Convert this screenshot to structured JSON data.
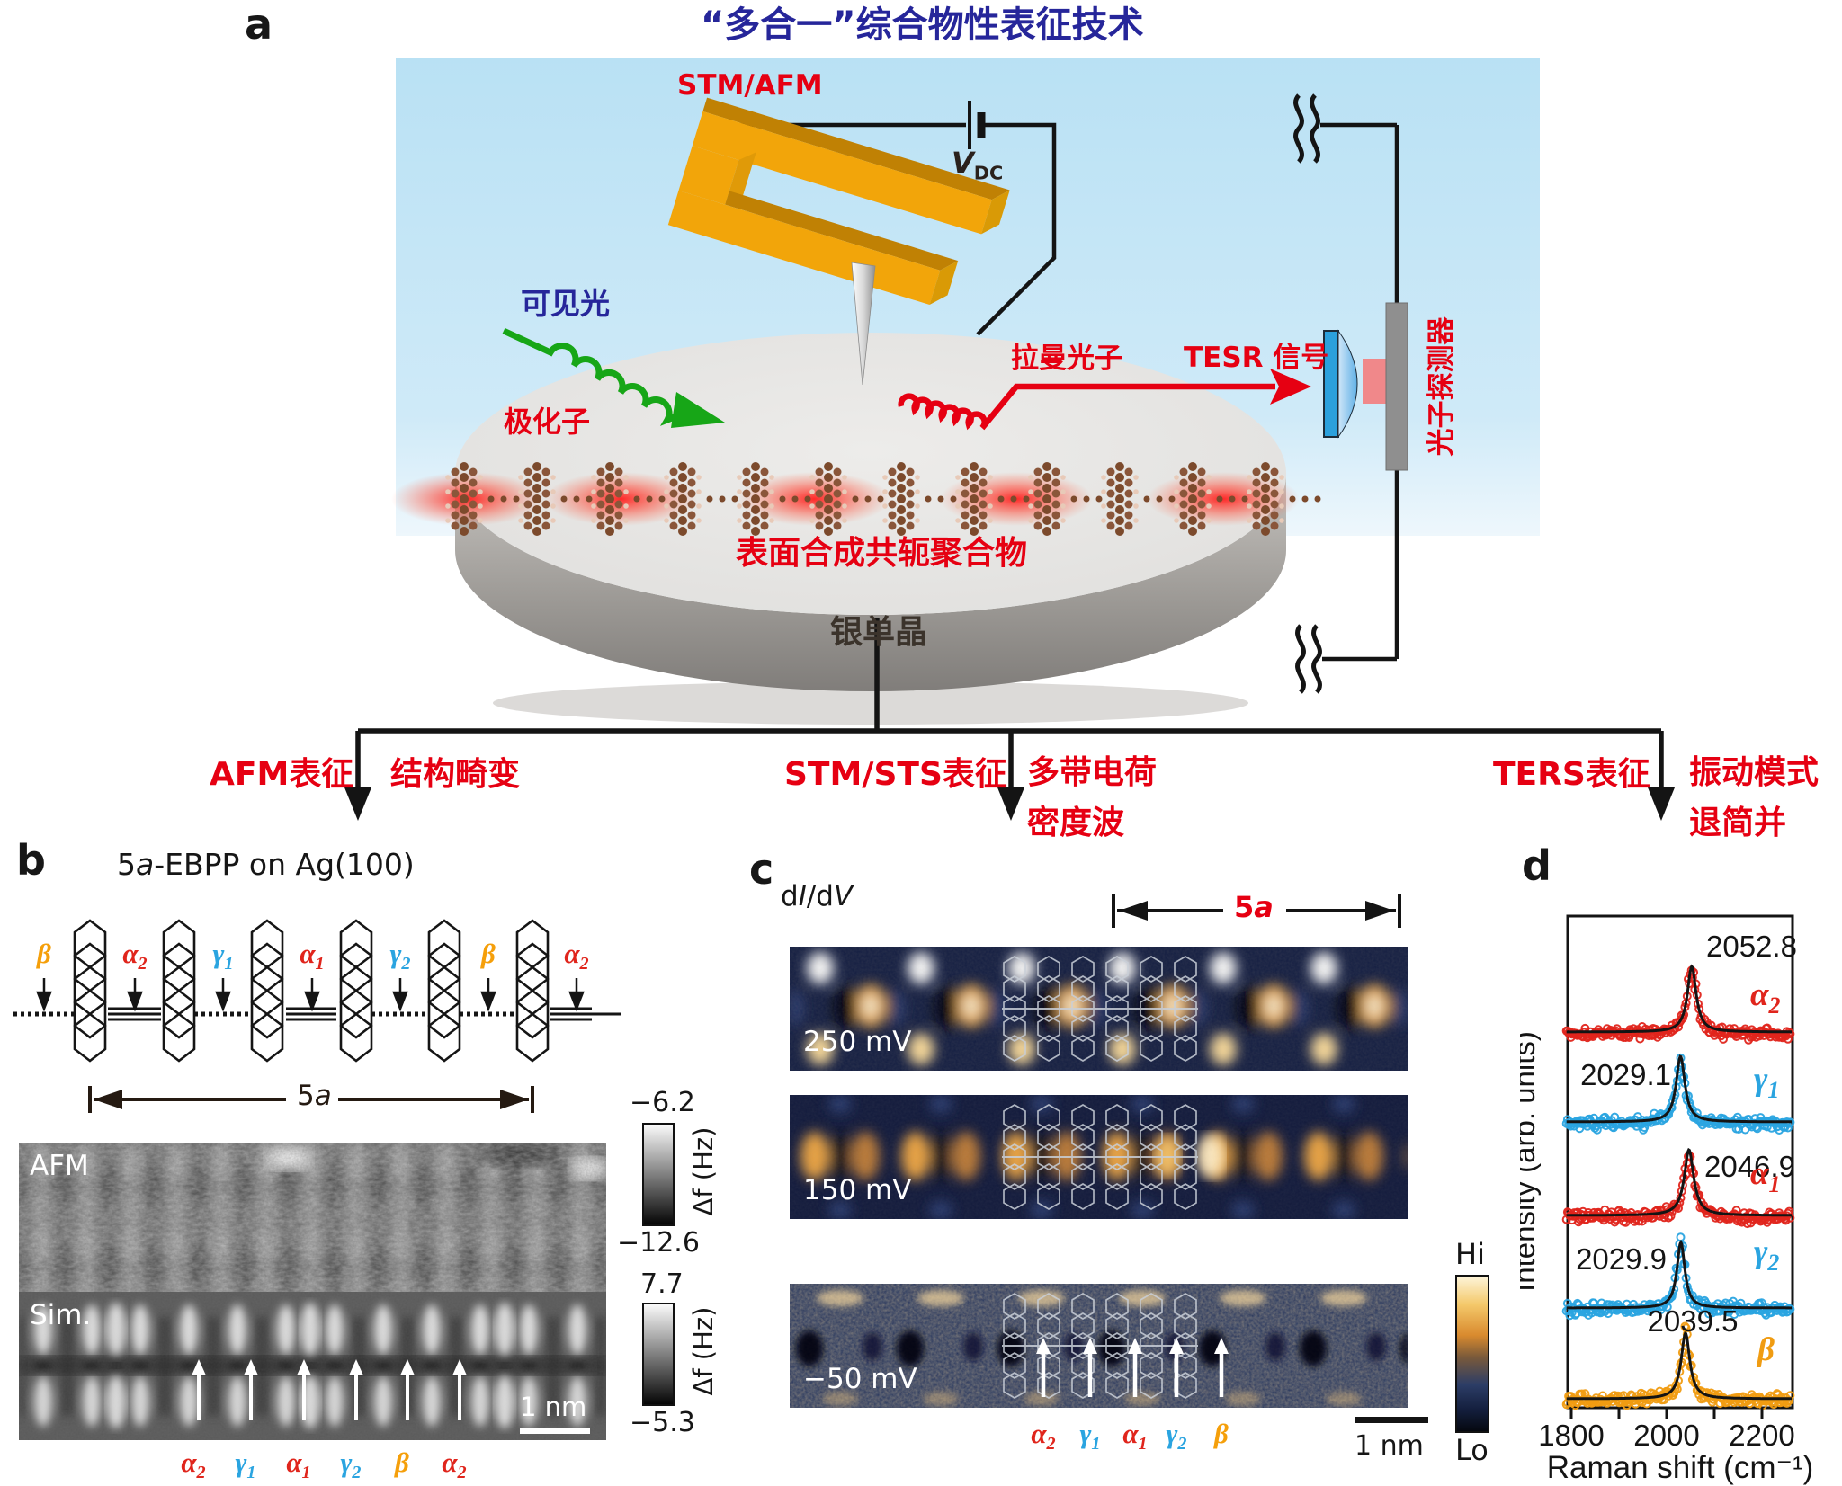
{
  "panel_a": {
    "label": "a",
    "title": "“多合一”综合物性表征技术",
    "stm_afm": "STM/AFM",
    "bias": {
      "base": "V",
      "sub": "DC"
    },
    "visible_light": "可见光",
    "polaron": "极化子",
    "raman_photon": "拉曼光子",
    "tesr_signal": "TESR 信号",
    "photon_detector": "光子探测器",
    "polymer": "表面合成共轭聚合物",
    "silver_crystal": "银单晶",
    "colors": {
      "box_blue": "#bee3f5",
      "accent_red": "#e60012",
      "title_blue": "#26269a",
      "fork_orange": "#f2a50a",
      "light_green": "#17a617",
      "crystal_gray": "#3b332b"
    }
  },
  "branches": [
    {
      "method": "AFM表征",
      "result_line1": "结构畸变",
      "result_line2": ""
    },
    {
      "method": "STM/STS表征",
      "result_line1": "多带电荷",
      "result_line2": "密度波"
    },
    {
      "method": "TERS表征",
      "result_line1": "振动模式",
      "result_line2": "退简并"
    }
  ],
  "panel_b": {
    "label": "b",
    "title": {
      "t1": "5",
      "t2": "a",
      "t3": "-EBPP on Ag(100)"
    },
    "bond_labels": [
      {
        "base": "β",
        "sub": "",
        "color": "#f59f0a"
      },
      {
        "base": "α",
        "sub": "2",
        "color": "#e0251c"
      },
      {
        "base": "γ",
        "sub": "1",
        "color": "#2aa4e0"
      },
      {
        "base": "α",
        "sub": "1",
        "color": "#e0251c"
      },
      {
        "base": "γ",
        "sub": "2",
        "color": "#2aa4e0"
      },
      {
        "base": "β",
        "sub": "",
        "color": "#f59f0a"
      },
      {
        "base": "α",
        "sub": "2",
        "color": "#e0251c"
      }
    ],
    "span_label": {
      "n": "5",
      "a": "a"
    },
    "afm_label": "AFM",
    "sim_label": "Sim.",
    "afm_scale_top": "−6.2",
    "afm_scale_bottom": "−12.6",
    "afm_scale_unit": "Δf (Hz)",
    "sim_scale_top": "7.7",
    "sim_scale_bottom": "−5.3",
    "sim_scale_unit": "Δf (Hz)",
    "scalebar": "1 nm",
    "bottom_labels": [
      {
        "base": "α",
        "sub": "2",
        "color": "#e0251c"
      },
      {
        "base": "γ",
        "sub": "1",
        "color": "#2aa4e0"
      },
      {
        "base": "α",
        "sub": "1",
        "color": "#e0251c"
      },
      {
        "base": "γ",
        "sub": "2",
        "color": "#2aa4e0"
      },
      {
        "base": "β",
        "sub": "",
        "color": "#f59f0a"
      },
      {
        "base": "α",
        "sub": "2",
        "color": "#e0251c"
      }
    ]
  },
  "panel_c": {
    "label": "c",
    "map_label": {
      "p1": "d",
      "p2": "I",
      "p3": "/d",
      "p4": "V"
    },
    "span_label": {
      "n": "5",
      "a": "a"
    },
    "maps": [
      {
        "bias": "250 mV"
      },
      {
        "bias": "150 mV"
      },
      {
        "bias": "−50 mV"
      }
    ],
    "colorbar_top": "Hi",
    "colorbar_bottom": "Lo",
    "scalebar": "1 nm",
    "bottom_labels": [
      {
        "base": "α",
        "sub": "2",
        "color": "#e0251c"
      },
      {
        "base": "γ",
        "sub": "1",
        "color": "#2aa4e0"
      },
      {
        "base": "α",
        "sub": "1",
        "color": "#e0251c"
      },
      {
        "base": "γ",
        "sub": "2",
        "color": "#2aa4e0"
      },
      {
        "base": "β",
        "sub": "",
        "color": "#f59f0a"
      }
    ]
  },
  "panel_d": {
    "label": "d"
  },
  "chart_data": {
    "type": "line",
    "description": "TERS spectra of single vibrational modes with Lorentzian fits (curves vertically offset)",
    "xlabel": "Raman shift (cm⁻¹)",
    "ylabel": "Intensity (arb. units)",
    "xlim": [
      1790,
      2265
    ],
    "xticks": [
      1800,
      1900,
      2000,
      2100,
      2200
    ],
    "xtick_label_values": [
      1800,
      2000,
      2200
    ],
    "grid": false,
    "legend_position": "right of each curve",
    "marker": "open circles (experiment)",
    "fit": "black Lorentzian fit",
    "series": [
      {
        "name": "α",
        "sub": "2",
        "color": "#e0251c",
        "peak_center": 2052.8,
        "peak_label": "2052.8",
        "label_side": "right",
        "fwhm_cm": 22,
        "row": 0
      },
      {
        "name": "γ",
        "sub": "1",
        "color": "#2aa4e0",
        "peak_center": 2029.1,
        "peak_label": "2029.1",
        "label_side": "left",
        "fwhm_cm": 22,
        "row": 1
      },
      {
        "name": "α",
        "sub": "1",
        "color": "#e0251c",
        "peak_center": 2046.9,
        "peak_label": "2046.9",
        "label_side": "right",
        "fwhm_cm": 24,
        "row": 2
      },
      {
        "name": "γ",
        "sub": "2",
        "color": "#2aa4e0",
        "peak_center": 2029.9,
        "peak_label": "2029.9",
        "label_side": "left",
        "fwhm_cm": 20,
        "row": 3
      },
      {
        "name": "β",
        "sub": "",
        "color": "#f09c12",
        "peak_center": 2039.5,
        "peak_label": "2039.5",
        "label_side": "center",
        "fwhm_cm": 22,
        "row": 4
      }
    ]
  }
}
